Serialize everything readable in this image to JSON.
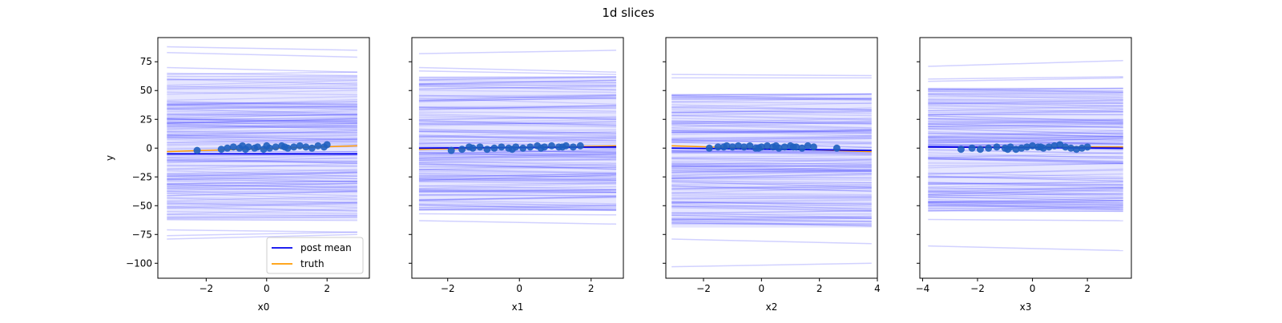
{
  "figure": {
    "title": "1d slices"
  },
  "chart_data": [
    {
      "type": "line",
      "xlabel": "x0",
      "ylabel": "y",
      "xlim": [
        -3.6,
        3.4
      ],
      "ylim": [
        -113,
        96
      ],
      "xticks": [
        -2,
        0,
        2
      ],
      "xtick_labels": [
        "−2",
        "0",
        "2"
      ],
      "yticks": [
        75,
        50,
        25,
        0,
        -25,
        -50,
        -75,
        -100
      ],
      "ytick_labels": [
        "75",
        "50",
        "25",
        "0",
        "−25",
        "−50",
        "−75",
        "−100"
      ],
      "x_range": [
        -3.3,
        3.0
      ],
      "band_intercepts": [
        -63,
        63
      ],
      "sample_lines": [
        [
          88,
          85
        ],
        [
          83,
          79
        ],
        [
          70,
          66
        ],
        [
          65,
          63
        ],
        [
          64,
          66
        ],
        [
          -71,
          -73
        ],
        [
          -76,
          -73
        ],
        [
          -79,
          -75
        ]
      ],
      "post_mean": [
        -5,
        -5
      ],
      "truth": [
        -3,
        2
      ],
      "points_x": [
        -2.3,
        -1.5,
        -1.3,
        -1.1,
        -0.9,
        -0.8,
        -0.6,
        -0.4,
        -0.3,
        -0.1,
        0.1,
        0.3,
        0.5,
        0.7,
        0.9,
        1.1,
        1.3,
        1.5,
        1.7,
        1.9,
        2.0,
        0.0,
        -0.7,
        0.6
      ],
      "points_y": [
        -2,
        -1,
        0,
        1,
        0,
        2,
        1,
        0,
        1,
        -1,
        0,
        1,
        2,
        0,
        1,
        2,
        1,
        0,
        2,
        1,
        3,
        2,
        -1,
        1
      ],
      "legend": {
        "position": "lower right",
        "entries": [
          "post mean",
          "truth"
        ]
      }
    },
    {
      "type": "line",
      "xlabel": "x1",
      "xlim": [
        -3.0,
        2.9
      ],
      "ylim": [
        -113,
        96
      ],
      "xticks": [
        -2,
        0,
        2
      ],
      "xtick_labels": [
        "−2",
        "0",
        "2"
      ],
      "x_range": [
        -2.8,
        2.7
      ],
      "band_intercepts": [
        -54,
        62
      ],
      "sample_lines": [
        [
          82,
          85
        ],
        [
          70,
          66
        ],
        [
          67,
          64
        ],
        [
          -63,
          -66
        ],
        [
          -57,
          -58
        ]
      ],
      "post_mean": [
        0,
        1
      ],
      "truth": [
        -1,
        2
      ],
      "points_x": [
        -1.9,
        -1.6,
        -1.3,
        -1.1,
        -0.9,
        -0.7,
        -0.5,
        -0.3,
        -0.1,
        0.1,
        0.3,
        0.5,
        0.7,
        0.9,
        1.1,
        1.3,
        1.5,
        1.7,
        -1.4,
        -0.2,
        0.6,
        1.2
      ],
      "points_y": [
        -2,
        -1,
        0,
        1,
        -1,
        0,
        1,
        0,
        1,
        0,
        1,
        2,
        1,
        2,
        1,
        2,
        1,
        2,
        1,
        -1,
        0,
        1
      ],
      "legend": null
    },
    {
      "type": "line",
      "xlabel": "x2",
      "xlim": [
        -3.3,
        4.0
      ],
      "ylim": [
        -113,
        96
      ],
      "xticks": [
        -2,
        0,
        2,
        4
      ],
      "xtick_labels": [
        "−2",
        "0",
        "2",
        "4"
      ],
      "x_range": [
        -3.1,
        3.8
      ],
      "band_intercepts": [
        -69,
        47
      ],
      "sample_lines": [
        [
          64,
          63
        ],
        [
          61,
          61
        ],
        [
          -79,
          -83
        ],
        [
          -103,
          -100
        ]
      ],
      "post_mean": [
        0,
        -2
      ],
      "truth": [
        2,
        -3
      ],
      "points_x": [
        -1.8,
        -1.5,
        -1.2,
        -1.0,
        -0.8,
        -0.6,
        -0.4,
        -0.2,
        0.0,
        0.2,
        0.4,
        0.6,
        0.8,
        1.0,
        1.2,
        1.4,
        1.6,
        1.8,
        2.6,
        -1.3,
        -0.1,
        0.5,
        1.1
      ],
      "points_y": [
        0,
        1,
        2,
        1,
        2,
        1,
        2,
        0,
        1,
        2,
        1,
        0,
        1,
        2,
        1,
        0,
        2,
        1,
        0,
        1,
        0,
        2,
        1
      ],
      "legend": null
    },
    {
      "type": "line",
      "xlabel": "x3",
      "xlim": [
        -4.1,
        3.6
      ],
      "ylim": [
        -113,
        96
      ],
      "xticks": [
        -4,
        -2,
        0,
        2
      ],
      "xtick_labels": [
        "−4",
        "−2",
        "0",
        "2"
      ],
      "x_range": [
        -3.8,
        3.3
      ],
      "band_intercepts": [
        -55,
        52
      ],
      "sample_lines": [
        [
          71,
          76
        ],
        [
          60,
          62
        ],
        [
          58,
          61
        ],
        [
          -62,
          -63
        ],
        [
          -85,
          -89
        ]
      ],
      "post_mean": [
        1,
        0
      ],
      "truth": [
        1,
        1
      ],
      "points_x": [
        -2.6,
        -2.2,
        -1.9,
        -1.6,
        -1.3,
        -1.0,
        -0.8,
        -0.6,
        -0.4,
        -0.2,
        0.0,
        0.2,
        0.4,
        0.6,
        0.8,
        1.0,
        1.2,
        1.4,
        1.6,
        1.8,
        2.0,
        -0.9,
        0.3
      ],
      "points_y": [
        -1,
        0,
        -1,
        0,
        1,
        0,
        1,
        -1,
        0,
        1,
        2,
        1,
        0,
        1,
        2,
        3,
        1,
        0,
        -1,
        0,
        1,
        -1,
        1
      ],
      "legend": null
    }
  ]
}
